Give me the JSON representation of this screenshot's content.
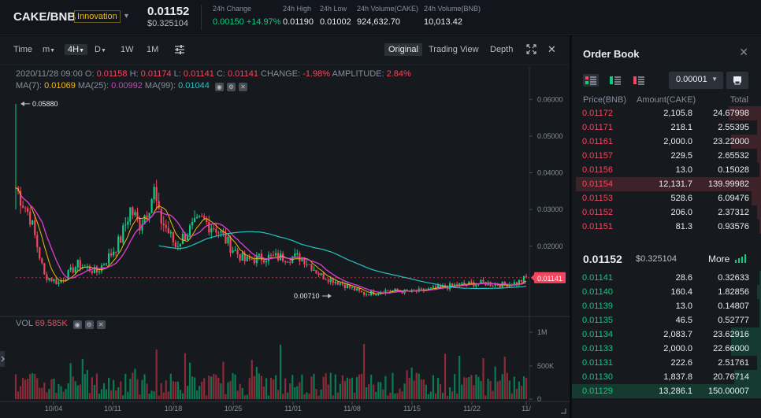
{
  "header": {
    "pair": "CAKE/BNB",
    "badge": "Innovation",
    "price": "0.01152",
    "price_usd": "$0.325104",
    "stats": [
      {
        "label": "24h Change",
        "value": "0.00150 +14.97%",
        "color": "green"
      },
      {
        "label": "24h High",
        "value": "0.01190"
      },
      {
        "label": "24h Low",
        "value": "0.01002"
      },
      {
        "label": "24h Volume(CAKE)",
        "value": "924,632.70"
      },
      {
        "label": "24h Volume(BNB)",
        "value": "10,013.42"
      }
    ]
  },
  "toolbar": {
    "time": "Time",
    "minutes": "m",
    "interval_active": "4H",
    "day": "D",
    "week": "1W",
    "month": "1M",
    "views": [
      "Original",
      "Trading View",
      "Depth"
    ]
  },
  "ohlc": {
    "date": "2020/11/28 09:00",
    "o_label": "O:",
    "o": "0.01158",
    "h_label": "H:",
    "h": "0.01174",
    "l_label": "L:",
    "l": "0.01141",
    "c_label": "C:",
    "c": "0.01141",
    "change_label": "CHANGE:",
    "change": "-1.98%",
    "amp_label": "AMPLITUDE:",
    "amp": "2.84%"
  },
  "ma": {
    "ma7_label": "MA(7):",
    "ma7": "0.01069",
    "ma25_label": "MA(25):",
    "ma25": "0.00992",
    "ma99_label": "MA(99):",
    "ma99": "0.01044"
  },
  "vol": {
    "label": "VOL",
    "value": "69.585K"
  },
  "chart_data": {
    "type": "candlestick",
    "price_axis": [
      "0.06000",
      "0.05000",
      "0.04000",
      "0.03000",
      "0.02000"
    ],
    "volume_axis": [
      "1M",
      "500K",
      "0"
    ],
    "x_labels": [
      "10/04",
      "10/11",
      "10/18",
      "10/25",
      "11/01",
      "11/08",
      "11/15",
      "11/22",
      "11/"
    ],
    "max_marker": "0.05880",
    "min_marker": "0.00710",
    "last_price": "0.01141"
  },
  "orderbook": {
    "title": "Order Book",
    "precision": "0.00001",
    "columns": [
      "Price(BNB)",
      "Amount(CAKE)",
      "Total"
    ],
    "asks": [
      {
        "price": "0.01172",
        "amount": "2,105.8",
        "total": "24.67998",
        "depth": 0.17
      },
      {
        "price": "0.01171",
        "amount": "218.1",
        "total": "2.55395",
        "depth": 0.02
      },
      {
        "price": "0.01161",
        "amount": "2,000.0",
        "total": "23.22000",
        "depth": 0.16
      },
      {
        "price": "0.01157",
        "amount": "229.5",
        "total": "2.65532",
        "depth": 0.02
      },
      {
        "price": "0.01156",
        "amount": "13.0",
        "total": "0.15028",
        "depth": 0.01
      },
      {
        "price": "0.01154",
        "amount": "12,131.7",
        "total": "139.99982",
        "depth": 0.98
      },
      {
        "price": "0.01153",
        "amount": "528.6",
        "total": "6.09476",
        "depth": 0.05
      },
      {
        "price": "0.01152",
        "amount": "206.0",
        "total": "2.37312",
        "depth": 0.02
      },
      {
        "price": "0.01151",
        "amount": "81.3",
        "total": "0.93576",
        "depth": 0.01
      }
    ],
    "mid_price": "0.01152",
    "mid_usd": "$0.325104",
    "more": "More",
    "bids": [
      {
        "price": "0.01141",
        "amount": "28.6",
        "total": "0.32633",
        "depth": 0.01
      },
      {
        "price": "0.01140",
        "amount": "160.4",
        "total": "1.82856",
        "depth": 0.02
      },
      {
        "price": "0.01139",
        "amount": "13.0",
        "total": "0.14807",
        "depth": 0.01
      },
      {
        "price": "0.01135",
        "amount": "46.5",
        "total": "0.52777",
        "depth": 0.01
      },
      {
        "price": "0.01134",
        "amount": "2,083.7",
        "total": "23.62916",
        "depth": 0.16
      },
      {
        "price": "0.01133",
        "amount": "2,000.0",
        "total": "22.66000",
        "depth": 0.16
      },
      {
        "price": "0.01131",
        "amount": "222.6",
        "total": "2.51761",
        "depth": 0.02
      },
      {
        "price": "0.01130",
        "amount": "1,837.8",
        "total": "20.76714",
        "depth": 0.14
      },
      {
        "price": "0.01129",
        "amount": "13,286.1",
        "total": "150.00007",
        "depth": 1.0
      }
    ]
  },
  "colors": {
    "up": "#0ecb81",
    "down": "#f6465d",
    "accent": "#f0b90b",
    "ma7": "#f0b90b",
    "ma25": "#d43dc6",
    "ma99": "#24c3c3"
  }
}
